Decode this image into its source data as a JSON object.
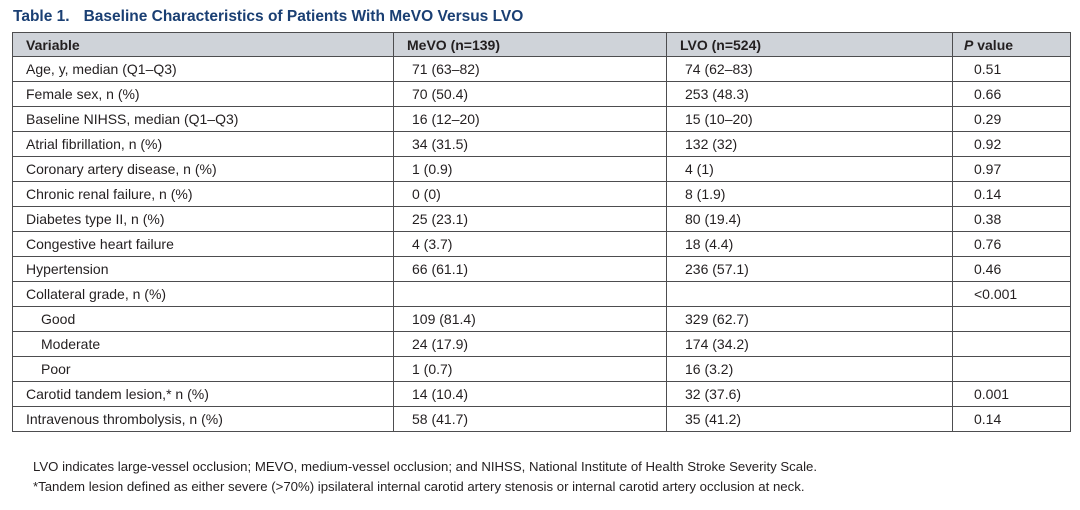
{
  "title": {
    "label": "Table 1.",
    "text": "Baseline Characteristics of Patients With MeVO Versus LVO"
  },
  "table": {
    "headers": {
      "variable": "Variable",
      "mevo": "MeVO (n=139)",
      "lvo": "LVO (n=524)",
      "p_italic": "P",
      "p_rest": " value"
    },
    "rows": [
      {
        "variable": "Age, y, median (Q1–Q3)",
        "mevo": "71 (63–82)",
        "lvo": "74 (62–83)",
        "p": "0.51"
      },
      {
        "variable": "Female sex, n (%)",
        "mevo": "70 (50.4)",
        "lvo": "253 (48.3)",
        "p": "0.66"
      },
      {
        "variable": "Baseline NIHSS, median (Q1–Q3)",
        "mevo": "16 (12–20)",
        "lvo": "15 (10–20)",
        "p": "0.29"
      },
      {
        "variable": "Atrial fibrillation, n (%)",
        "mevo": "34 (31.5)",
        "lvo": "132 (32)",
        "p": "0.92"
      },
      {
        "variable": "Coronary artery disease, n (%)",
        "mevo": "1 (0.9)",
        "lvo": "4 (1)",
        "p": "0.97"
      },
      {
        "variable": "Chronic renal failure, n (%)",
        "mevo": "0 (0)",
        "lvo": "8 (1.9)",
        "p": "0.14"
      },
      {
        "variable": "Diabetes type II, n (%)",
        "mevo": "25 (23.1)",
        "lvo": "80 (19.4)",
        "p": "0.38"
      },
      {
        "variable": "Congestive heart failure",
        "mevo": "4 (3.7)",
        "lvo": "18 (4.4)",
        "p": "0.76"
      },
      {
        "variable": "Hypertension",
        "mevo": "66 (61.1)",
        "lvo": "236 (57.1)",
        "p": "0.46"
      },
      {
        "variable": "Collateral grade, n (%)",
        "mevo": "",
        "lvo": "",
        "p": "<0.001"
      },
      {
        "variable": "Good",
        "mevo": "109 (81.4)",
        "lvo": "329 (62.7)",
        "p": ""
      },
      {
        "variable": "Moderate",
        "mevo": "24 (17.9)",
        "lvo": "174 (34.2)",
        "p": ""
      },
      {
        "variable": "Poor",
        "mevo": "1 (0.7)",
        "lvo": "16 (3.2)",
        "p": ""
      },
      {
        "variable": "Carotid tandem lesion,* n (%)",
        "mevo": "14 (10.4)",
        "lvo": "32 (37.6)",
        "p": "0.001"
      },
      {
        "variable": "Intravenous thrombolysis, n (%)",
        "mevo": "58 (41.7)",
        "lvo": "35 (41.2)",
        "p": "0.14"
      }
    ]
  },
  "footnotes": [
    "LVO indicates large-vessel occlusion; MEVO, medium-vessel occlusion; and NIHSS, National Institute of Health Stroke Severity Scale.",
    "*Tandem lesion defined as either severe (>70%) ipsilateral internal carotid artery stenosis or internal carotid artery occlusion at neck."
  ],
  "colors": {
    "title": "#1a3f73",
    "header_background": "#cfd3d9",
    "rule": "#4d4d4f"
  }
}
